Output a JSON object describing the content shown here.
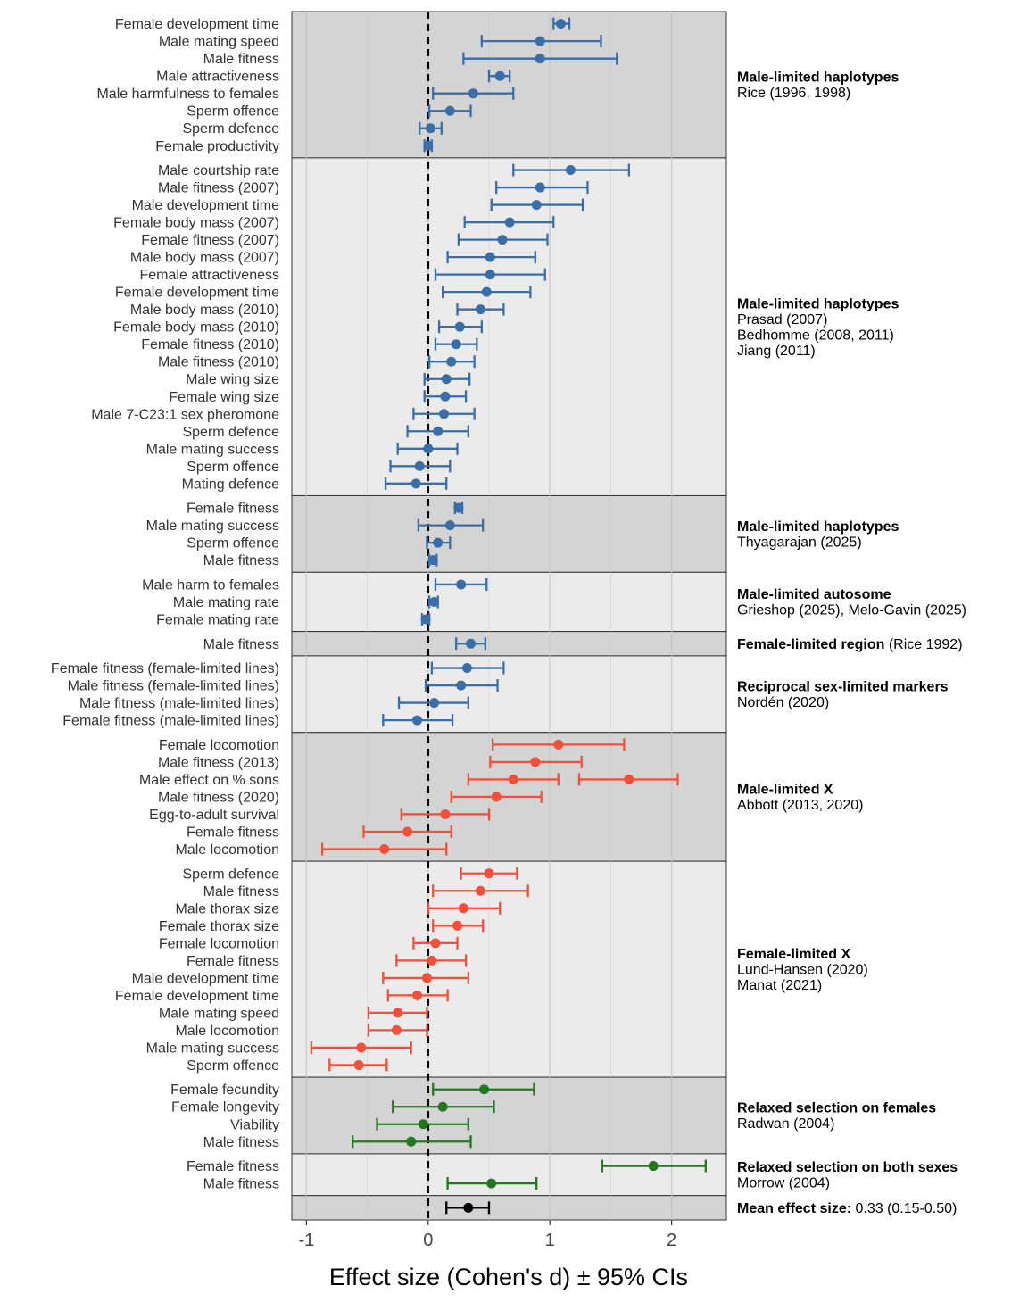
{
  "chart_data": {
    "type": "forest",
    "xlabel": "Effect size (Cohen's d) ± 95% CIs",
    "xlim": [
      -1.12,
      2.45
    ],
    "x_ticks": [
      {
        "value": -1,
        "label": "-1"
      },
      {
        "value": 0,
        "label": "0"
      },
      {
        "value": 1,
        "label": "1"
      },
      {
        "value": 2,
        "label": "2"
      }
    ],
    "zero_line": 0,
    "colors": {
      "blue": "#3a6ea8",
      "red": "#f2503a",
      "green": "#23781f",
      "black": "#000000",
      "panel_dark": "#d4d4d4",
      "panel_light": "#ebebeb",
      "grid": "#c4c4c4"
    },
    "groups": [
      {
        "title": "Male-limited haplotypes",
        "title_extra": "",
        "refs": [
          "Rice (1996, 1998)"
        ],
        "color": "blue",
        "rows": [
          {
            "label": "Female development time",
            "est": 1.09,
            "lo": 1.03,
            "hi": 1.16
          },
          {
            "label": "Male mating speed",
            "est": 0.92,
            "lo": 0.44,
            "hi": 1.42
          },
          {
            "label": "Male fitness",
            "est": 0.92,
            "lo": 0.29,
            "hi": 1.55
          },
          {
            "label": "Male attractiveness",
            "est": 0.59,
            "lo": 0.5,
            "hi": 0.67
          },
          {
            "label": "Male harmfulness to females",
            "est": 0.37,
            "lo": 0.04,
            "hi": 0.7
          },
          {
            "label": "Sperm offence",
            "est": 0.18,
            "lo": 0.01,
            "hi": 0.35
          },
          {
            "label": "Sperm defence",
            "est": 0.02,
            "lo": -0.07,
            "hi": 0.11
          },
          {
            "label": "Female productivity",
            "est": 0.0,
            "lo": -0.03,
            "hi": 0.03
          }
        ]
      },
      {
        "title": "Male-limited haplotypes",
        "title_extra": "",
        "refs": [
          "Prasad (2007)",
          "Bedhomme (2008, 2011)",
          "Jiang (2011)"
        ],
        "color": "blue",
        "rows": [
          {
            "label": "Male courtship rate",
            "est": 1.17,
            "lo": 0.7,
            "hi": 1.65
          },
          {
            "label": "Male fitness (2007)",
            "est": 0.92,
            "lo": 0.56,
            "hi": 1.31
          },
          {
            "label": "Male development time",
            "est": 0.89,
            "lo": 0.52,
            "hi": 1.27
          },
          {
            "label": "Female body mass (2007)",
            "est": 0.67,
            "lo": 0.3,
            "hi": 1.03
          },
          {
            "label": "Female fitness (2007)",
            "est": 0.61,
            "lo": 0.25,
            "hi": 0.98
          },
          {
            "label": "Male body mass (2007)",
            "est": 0.51,
            "lo": 0.16,
            "hi": 0.88
          },
          {
            "label": "Female attractiveness",
            "est": 0.51,
            "lo": 0.06,
            "hi": 0.96
          },
          {
            "label": "Female development time",
            "est": 0.48,
            "lo": 0.12,
            "hi": 0.84
          },
          {
            "label": "Male body mass  (2010)",
            "est": 0.43,
            "lo": 0.24,
            "hi": 0.62
          },
          {
            "label": "Female body mass (2010)",
            "est": 0.26,
            "lo": 0.09,
            "hi": 0.44
          },
          {
            "label": "Female fitness (2010)",
            "est": 0.23,
            "lo": 0.06,
            "hi": 0.4
          },
          {
            "label": "Male fitness  (2010)",
            "est": 0.19,
            "lo": 0.01,
            "hi": 0.38
          },
          {
            "label": "Male wing size",
            "est": 0.15,
            "lo": -0.03,
            "hi": 0.34
          },
          {
            "label": "Female wing size",
            "est": 0.14,
            "lo": -0.03,
            "hi": 0.31
          },
          {
            "label": "Male 7-C23:1 sex pheromone",
            "est": 0.13,
            "lo": -0.12,
            "hi": 0.38
          },
          {
            "label": "Sperm defence",
            "est": 0.08,
            "lo": -0.17,
            "hi": 0.33
          },
          {
            "label": "Male mating success",
            "est": 0.0,
            "lo": -0.25,
            "hi": 0.24
          },
          {
            "label": "Sperm offence",
            "est": -0.07,
            "lo": -0.31,
            "hi": 0.18
          },
          {
            "label": "Mating defence",
            "est": -0.1,
            "lo": -0.35,
            "hi": 0.15
          }
        ]
      },
      {
        "title": "Male-limited haplotypes",
        "title_extra": "",
        "refs": [
          "Thyagarajan (2025)"
        ],
        "color": "blue",
        "rows": [
          {
            "label": "Female fitness",
            "est": 0.25,
            "lo": 0.22,
            "hi": 0.28
          },
          {
            "label": "Male mating success",
            "est": 0.18,
            "lo": -0.08,
            "hi": 0.45
          },
          {
            "label": "Sperm offence",
            "est": 0.08,
            "lo": -0.01,
            "hi": 0.18
          },
          {
            "label": "Male fitness",
            "est": 0.04,
            "lo": 0.01,
            "hi": 0.07
          }
        ]
      },
      {
        "title": "Male-limited autosome",
        "title_extra": "",
        "refs": [
          "Grieshop (2025), Melo-Gavin (2025)"
        ],
        "color": "blue",
        "rows": [
          {
            "label": "Male harm to females",
            "est": 0.27,
            "lo": 0.06,
            "hi": 0.48
          },
          {
            "label": "Male mating rate",
            "est": 0.05,
            "lo": 0.01,
            "hi": 0.08
          },
          {
            "label": "Female mating rate",
            "est": -0.02,
            "lo": -0.05,
            "hi": 0.01
          }
        ]
      },
      {
        "title": "Female-limited region",
        "title_extra": " (Rice 1992)",
        "refs": [],
        "color": "blue",
        "rows": [
          {
            "label": "Male fitness",
            "est": 0.35,
            "lo": 0.23,
            "hi": 0.47
          }
        ]
      },
      {
        "title": "Reciprocal sex-limited markers",
        "title_extra": "",
        "refs": [
          "Nordén (2020)"
        ],
        "color": "blue",
        "rows": [
          {
            "label": "Female fitness (female-limited lines)",
            "est": 0.32,
            "lo": 0.03,
            "hi": 0.62
          },
          {
            "label": "Male fitness (female-limited lines)",
            "est": 0.27,
            "lo": -0.02,
            "hi": 0.57
          },
          {
            "label": "Male fitness (male-limited lines)",
            "est": 0.05,
            "lo": -0.24,
            "hi": 0.33
          },
          {
            "label": "Female fitness (male-limited lines)",
            "est": -0.09,
            "lo": -0.37,
            "hi": 0.2
          }
        ]
      },
      {
        "title": "Male-limited X",
        "title_extra": "",
        "refs": [
          "Abbott (2013, 2020)"
        ],
        "color": "red",
        "rows": [
          {
            "label": "Female locomotion",
            "est": 1.07,
            "lo": 0.53,
            "hi": 1.61
          },
          {
            "label": "Male fitness (2013)",
            "est": 0.88,
            "lo": 0.51,
            "hi": 1.26
          },
          {
            "label": "Male effect on % sons",
            "est": 0.7,
            "lo": 0.33,
            "hi": 1.07,
            "est2": 1.65,
            "lo2": 1.24,
            "hi2": 2.05
          },
          {
            "label": "Male fitness (2020)",
            "est": 0.56,
            "lo": 0.19,
            "hi": 0.93
          },
          {
            "label": "Egg-to-adult survival",
            "est": 0.14,
            "lo": -0.22,
            "hi": 0.5
          },
          {
            "label": "Female fitness",
            "est": -0.17,
            "lo": -0.53,
            "hi": 0.19
          },
          {
            "label": "Male locomotion",
            "est": -0.36,
            "lo": -0.87,
            "hi": 0.15
          }
        ]
      },
      {
        "title": "Female-limited X",
        "title_extra": "",
        "refs": [
          "Lund-Hansen (2020)",
          "Manat (2021)"
        ],
        "color": "red",
        "rows": [
          {
            "label": "Sperm defence",
            "est": 0.5,
            "lo": 0.27,
            "hi": 0.73
          },
          {
            "label": "Male fitness",
            "est": 0.43,
            "lo": 0.04,
            "hi": 0.82
          },
          {
            "label": "Male thorax size",
            "est": 0.29,
            "lo": 0.0,
            "hi": 0.59
          },
          {
            "label": "Female thorax size",
            "est": 0.24,
            "lo": 0.04,
            "hi": 0.45
          },
          {
            "label": "Female locomotion",
            "est": 0.06,
            "lo": -0.12,
            "hi": 0.24
          },
          {
            "label": "Female fitness",
            "est": 0.03,
            "lo": -0.26,
            "hi": 0.31
          },
          {
            "label": "Male development time",
            "est": -0.01,
            "lo": -0.37,
            "hi": 0.33
          },
          {
            "label": "Female development time",
            "est": -0.09,
            "lo": -0.33,
            "hi": 0.16
          },
          {
            "label": "Male mating speed",
            "est": -0.25,
            "lo": -0.49,
            "hi": -0.01
          },
          {
            "label": "Male locomotion",
            "est": -0.26,
            "lo": -0.49,
            "hi": -0.01
          },
          {
            "label": "Male mating success",
            "est": -0.55,
            "lo": -0.96,
            "hi": -0.14
          },
          {
            "label": "Sperm offence",
            "est": -0.57,
            "lo": -0.81,
            "hi": -0.34
          }
        ]
      },
      {
        "title": "Relaxed selection on females",
        "title_extra": "",
        "refs": [
          "Radwan (2004)"
        ],
        "color": "green",
        "rows": [
          {
            "label": "Female fecundity",
            "est": 0.46,
            "lo": 0.04,
            "hi": 0.87
          },
          {
            "label": "Female longevity",
            "est": 0.12,
            "lo": -0.29,
            "hi": 0.54
          },
          {
            "label": "Viability",
            "est": -0.04,
            "lo": -0.42,
            "hi": 0.33
          },
          {
            "label": "Male fitness",
            "est": -0.14,
            "lo": -0.62,
            "hi": 0.35
          }
        ]
      },
      {
        "title": "Relaxed selection on both sexes",
        "title_extra": "",
        "refs": [
          "Morrow (2004)"
        ],
        "color": "green",
        "rows": [
          {
            "label": "Female fitness",
            "est": 1.85,
            "lo": 1.43,
            "hi": 2.28
          },
          {
            "label": "Male fitness",
            "est": 0.52,
            "lo": 0.16,
            "hi": 0.89
          }
        ]
      },
      {
        "title": "Mean effect size:",
        "title_extra": " 0.33 (0.15-0.50)",
        "refs": [],
        "color": "black",
        "rows": [
          {
            "label": "",
            "est": 0.33,
            "lo": 0.15,
            "hi": 0.5
          }
        ]
      }
    ]
  }
}
